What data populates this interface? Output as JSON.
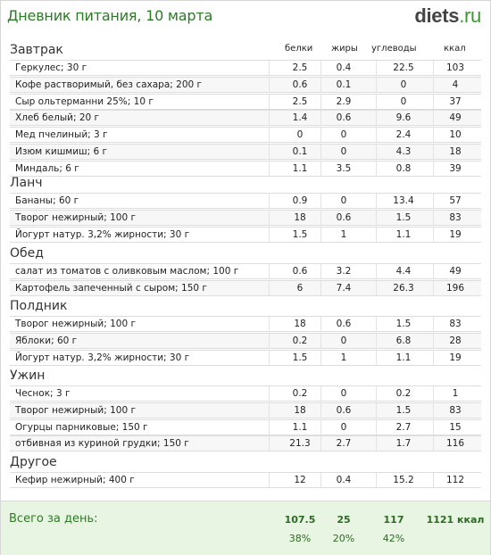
{
  "header": {
    "title": "Дневник питания, 10 марта",
    "logo_main": "diets",
    "logo_tld": ".ru"
  },
  "columns": {
    "protein": "белки",
    "fat": "жиры",
    "carbs": "углеводы",
    "kcal": "ккал"
  },
  "sections": [
    {
      "title": "Завтрак",
      "items": [
        {
          "name": "Геркулес; 30 г",
          "protein": "2.5",
          "fat": "0.4",
          "carbs": "22.5",
          "kcal": "103"
        },
        {
          "name": "Кофе растворимый, без сахара; 200 г",
          "protein": "0.6",
          "fat": "0.1",
          "carbs": "0",
          "kcal": "4"
        },
        {
          "name": "Сыр ольтерманни 25%; 10 г",
          "protein": "2.5",
          "fat": "2.9",
          "carbs": "0",
          "kcal": "37"
        },
        {
          "name": "Хлеб белый; 20 г",
          "protein": "1.4",
          "fat": "0.6",
          "carbs": "9.6",
          "kcal": "49"
        },
        {
          "name": "Мед пчелиный; 3 г",
          "protein": "0",
          "fat": "0",
          "carbs": "2.4",
          "kcal": "10"
        },
        {
          "name": "Изюм кишмиш; 6 г",
          "protein": "0.1",
          "fat": "0",
          "carbs": "4.3",
          "kcal": "18"
        },
        {
          "name": "Миндаль; 6 г",
          "protein": "1.1",
          "fat": "3.5",
          "carbs": "0.8",
          "kcal": "39"
        }
      ]
    },
    {
      "title": "Ланч",
      "items": [
        {
          "name": "Бананы; 60 г",
          "protein": "0.9",
          "fat": "0",
          "carbs": "13.4",
          "kcal": "57"
        },
        {
          "name": "Творог нежирный; 100 г",
          "protein": "18",
          "fat": "0.6",
          "carbs": "1.5",
          "kcal": "83"
        },
        {
          "name": "Йогурт натур. 3,2% жирности; 30 г",
          "protein": "1.5",
          "fat": "1",
          "carbs": "1.1",
          "kcal": "19"
        }
      ]
    },
    {
      "title": "Обед",
      "items": [
        {
          "name": "салат из томатов с оливковым маслом; 100 г",
          "protein": "0.6",
          "fat": "3.2",
          "carbs": "4.4",
          "kcal": "49"
        },
        {
          "name": "Картофель запеченный с сыром; 150 г",
          "protein": "6",
          "fat": "7.4",
          "carbs": "26.3",
          "kcal": "196"
        }
      ]
    },
    {
      "title": "Полдник",
      "items": [
        {
          "name": "Творог нежирный; 100 г",
          "protein": "18",
          "fat": "0.6",
          "carbs": "1.5",
          "kcal": "83"
        },
        {
          "name": "Яблоки; 60 г",
          "protein": "0.2",
          "fat": "0",
          "carbs": "6.8",
          "kcal": "28"
        },
        {
          "name": "Йогурт натур. 3,2% жирности; 30 г",
          "protein": "1.5",
          "fat": "1",
          "carbs": "1.1",
          "kcal": "19"
        }
      ]
    },
    {
      "title": "Ужин",
      "items": [
        {
          "name": "Чеснок; 3 г",
          "protein": "0.2",
          "fat": "0",
          "carbs": "0.2",
          "kcal": "1"
        },
        {
          "name": "Творог нежирный; 100 г",
          "protein": "18",
          "fat": "0.6",
          "carbs": "1.5",
          "kcal": "83"
        },
        {
          "name": "Огурцы парниковые; 150 г",
          "protein": "1.1",
          "fat": "0",
          "carbs": "2.7",
          "kcal": "15"
        },
        {
          "name": "отбивная из куриной грудки; 150 г",
          "protein": "21.3",
          "fat": "2.7",
          "carbs": "1.7",
          "kcal": "116"
        }
      ]
    },
    {
      "title": "Другое",
      "items": [
        {
          "name": "Кефир нежирный; 400 г",
          "protein": "12",
          "fat": "0.4",
          "carbs": "15.2",
          "kcal": "112"
        }
      ]
    }
  ],
  "totals": {
    "label": "Всего за день:",
    "protein": "107.5",
    "fat": "25",
    "carbs": "117",
    "kcal": "1121 ккал",
    "protein_pct": "38%",
    "fat_pct": "20%",
    "carbs_pct": "42%"
  },
  "colors": {
    "title_green": "#2b7a26",
    "totals_bg": "#e9f5e3",
    "row_alt": "#f7f7f7"
  }
}
